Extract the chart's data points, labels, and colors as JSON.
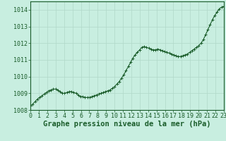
{
  "xlabel": "Graphe pression niveau de la mer (hPa)",
  "ylim": [
    1008,
    1014.5
  ],
  "xlim": [
    0,
    23
  ],
  "yticks": [
    1008,
    1009,
    1010,
    1011,
    1012,
    1013,
    1014
  ],
  "xticks": [
    0,
    1,
    2,
    3,
    4,
    5,
    6,
    7,
    8,
    9,
    10,
    11,
    12,
    13,
    14,
    15,
    16,
    17,
    18,
    19,
    20,
    21,
    22,
    23
  ],
  "background_color": "#c8eee0",
  "grid_color": "#b0d8c8",
  "line_color": "#1a5c2a",
  "marker_color": "#1a5c2a",
  "pressure_data": [
    1008.25,
    1008.35,
    1008.5,
    1008.65,
    1008.75,
    1008.85,
    1008.95,
    1009.05,
    1009.15,
    1009.2,
    1009.25,
    1009.25,
    1009.2,
    1009.1,
    1009.0,
    1009.0,
    1009.05,
    1009.1,
    1009.1,
    1009.05,
    1009.0,
    1008.9,
    1008.8,
    1008.8,
    1008.75,
    1008.75,
    1008.75,
    1008.8,
    1008.85,
    1008.9,
    1008.95,
    1009.0,
    1009.05,
    1009.1,
    1009.15,
    1009.2,
    1009.3,
    1009.4,
    1009.55,
    1009.7,
    1009.9,
    1010.1,
    1010.35,
    1010.6,
    1010.85,
    1011.1,
    1011.3,
    1011.45,
    1011.6,
    1011.75,
    1011.8,
    1011.75,
    1011.7,
    1011.65,
    1011.6,
    1011.6,
    1011.65,
    1011.6,
    1011.55,
    1011.5,
    1011.45,
    1011.4,
    1011.35,
    1011.3,
    1011.25,
    1011.2,
    1011.2,
    1011.25,
    1011.3,
    1011.35,
    1011.45,
    1011.55,
    1011.65,
    1011.75,
    1011.85,
    1012.0,
    1012.2,
    1012.5,
    1012.8,
    1013.1,
    1013.4,
    1013.65,
    1013.85,
    1014.05,
    1014.15,
    1014.2
  ],
  "title_fontsize": 7.5,
  "tick_fontsize": 6,
  "marker_size": 2.5,
  "line_width": 0.8
}
